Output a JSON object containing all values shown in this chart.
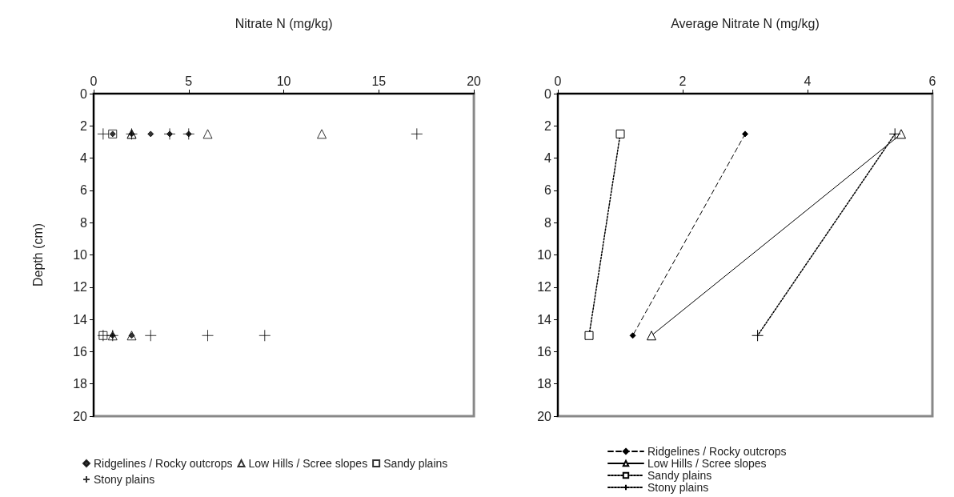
{
  "chart_data": [
    {
      "type": "scatter",
      "xlabel": "Nitrate N (mg/kg)",
      "ylabel": "Depth (cm)",
      "xlim": [
        0,
        20
      ],
      "xticks": [
        0,
        5,
        10,
        15,
        20
      ],
      "ylim": [
        20,
        0
      ],
      "yticks": [
        0,
        2,
        4,
        6,
        8,
        10,
        12,
        14,
        16,
        18,
        20
      ],
      "legend": "bottom",
      "grid": false,
      "series": [
        {
          "name": "Ridgelines / Rocky outcrops",
          "color": "#000000",
          "marker": "diamond",
          "x": [
            1,
            2,
            3,
            4,
            5,
            1,
            2
          ],
          "values": [
            2.5,
            2.5,
            2.5,
            2.5,
            2.5,
            15,
            15
          ]
        },
        {
          "name": "Low Hills / Scree slopes",
          "color": "#000000",
          "marker": "triangle",
          "x": [
            2,
            2,
            6,
            12,
            1,
            2
          ],
          "values": [
            2.5,
            2.5,
            2.5,
            2.5,
            15,
            15
          ]
        },
        {
          "name": "Sandy plains",
          "color": "#000000",
          "marker": "square",
          "x": [
            1,
            0.5
          ],
          "values": [
            2.5,
            15
          ]
        },
        {
          "name": "Stony plains",
          "color": "#000000",
          "marker": "cross",
          "x": [
            0.5,
            2,
            4,
            5,
            17,
            0.5,
            1,
            3,
            6,
            9
          ],
          "values": [
            2.5,
            2.5,
            2.5,
            2.5,
            2.5,
            15,
            15,
            15,
            15,
            15
          ]
        }
      ]
    },
    {
      "type": "line",
      "xlabel": "Average Nitrate N (mg/kg)",
      "xlim": [
        0,
        6
      ],
      "xticks": [
        0,
        2,
        4,
        6
      ],
      "ylim": [
        20,
        0
      ],
      "yticks": [
        0,
        2,
        4,
        6,
        8,
        10,
        12,
        14,
        16,
        18,
        20
      ],
      "legend": "bottom",
      "grid": false,
      "series": [
        {
          "name": "Ridgelines / Rocky outcrops",
          "color": "#000000",
          "marker": "diamond",
          "line_style": "dashed",
          "x": [
            3,
            1.2
          ],
          "values": [
            2.5,
            15
          ]
        },
        {
          "name": "Low Hills / Scree slopes",
          "color": "#000000",
          "marker": "triangle",
          "line_style": "solid",
          "x": [
            5.5,
            1.5
          ],
          "values": [
            2.5,
            15
          ]
        },
        {
          "name": "Sandy plains",
          "color": "#000000",
          "marker": "square",
          "line_style": "dotted",
          "x": [
            1,
            0.5
          ],
          "values": [
            2.5,
            15
          ]
        },
        {
          "name": "Stony plains",
          "color": "#000000",
          "marker": "cross",
          "line_style": "dotted",
          "x": [
            5.4,
            3.2
          ],
          "values": [
            2.5,
            15
          ]
        }
      ]
    }
  ]
}
